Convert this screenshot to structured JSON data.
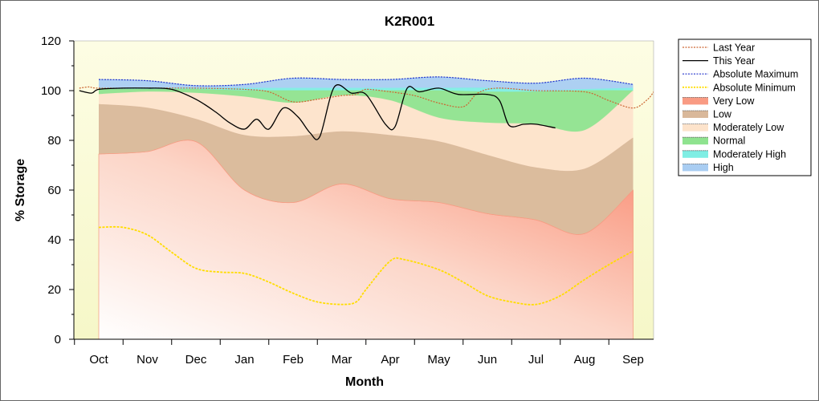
{
  "chart_data": {
    "type": "area",
    "title": "K2R001",
    "xlabel": "Month",
    "ylabel": "% Storage",
    "ylim": [
      0,
      120
    ],
    "y_ticks": [
      "0",
      "20",
      "40",
      "60",
      "80",
      "100",
      "120"
    ],
    "categories": [
      "Oct",
      "Nov",
      "Dec",
      "Jan",
      "Feb",
      "Mar",
      "Apr",
      "May",
      "Jun",
      "Jul",
      "Aug",
      "Sep"
    ],
    "legend_position": "right",
    "bands": [
      {
        "name": "Very Low",
        "color": "#f99b83",
        "lower": [
          0,
          0,
          0,
          0,
          0,
          0,
          0,
          0,
          0,
          0,
          0,
          0
        ],
        "upper": [
          74.5,
          75.5,
          79.5,
          60,
          55,
          62.5,
          56.5,
          55,
          50.5,
          48,
          42.5,
          60
        ]
      },
      {
        "name": "Low",
        "color": "#d9b89a",
        "lower": [
          74.5,
          75.5,
          79.5,
          60,
          55,
          62.5,
          56.5,
          55,
          50.5,
          48,
          42.5,
          60
        ],
        "upper": [
          94.5,
          93,
          88.5,
          82,
          81.5,
          83.5,
          82,
          79.5,
          74,
          69,
          68.5,
          81
        ]
      },
      {
        "name": "Moderately Low",
        "color": "#fde3cb",
        "lower": [
          94.5,
          93,
          88.5,
          82,
          81.5,
          83.5,
          82,
          79.5,
          74,
          69,
          68.5,
          81
        ],
        "upper": [
          98.5,
          99.5,
          99,
          97.5,
          95,
          98,
          96,
          89,
          87,
          86.5,
          84,
          100
        ]
      },
      {
        "name": "Normal",
        "color": "#8fe38f",
        "lower": [
          98.5,
          99.5,
          99,
          97.5,
          95,
          98,
          96,
          89,
          87,
          86.5,
          84,
          100
        ],
        "upper": [
          100.5,
          100.5,
          100.5,
          100,
          100,
          100,
          100,
          100,
          99.5,
          99.5,
          100,
          100
        ]
      },
      {
        "name": "Moderately High",
        "color": "#7feee4",
        "lower": [
          100.5,
          100.5,
          100.5,
          100,
          100,
          100,
          100,
          100,
          99.5,
          99.5,
          100,
          100
        ],
        "upper": [
          101,
          101,
          101,
          101,
          101,
          101,
          101,
          101,
          101,
          100,
          100.5,
          101
        ]
      },
      {
        "name": "High",
        "color": "#a9cdf2",
        "lower": [
          101,
          101,
          101,
          101,
          101,
          101,
          101,
          101,
          101,
          100,
          100.5,
          101
        ],
        "upper": [
          104.5,
          104,
          102,
          102.5,
          105,
          104.5,
          104.5,
          105.5,
          104,
          103,
          105,
          102.5
        ]
      }
    ],
    "lines": [
      {
        "name": "Last Year",
        "color": "#cc6633",
        "style": "dotted",
        "points": [
          [
            -0.4,
            101
          ],
          [
            -0.2,
            101.5
          ],
          [
            0,
            101
          ],
          [
            1,
            101
          ],
          [
            2,
            101
          ],
          [
            3,
            100.5
          ],
          [
            3.5,
            99.5
          ],
          [
            4,
            95.5
          ],
          [
            4.5,
            96.5
          ],
          [
            5,
            98
          ],
          [
            5.3,
            98.5
          ],
          [
            5.5,
            100.5
          ],
          [
            6,
            99.5
          ],
          [
            6.5,
            98
          ],
          [
            7,
            95
          ],
          [
            7.5,
            93.5
          ],
          [
            7.8,
            99
          ],
          [
            8.2,
            101
          ],
          [
            9,
            100
          ],
          [
            10,
            99.5
          ],
          [
            10.5,
            96
          ],
          [
            11,
            93
          ],
          [
            11.3,
            96.5
          ],
          [
            11.5,
            101
          ],
          [
            11.7,
            100
          ]
        ]
      },
      {
        "name": "This Year",
        "color": "#000000",
        "style": "solid",
        "points": [
          [
            -0.4,
            100
          ],
          [
            -0.15,
            99
          ],
          [
            0,
            100.5
          ],
          [
            0.5,
            101
          ],
          [
            1,
            101
          ],
          [
            1.5,
            100.5
          ],
          [
            2,
            96.5
          ],
          [
            2.4,
            91.5
          ],
          [
            2.7,
            87
          ],
          [
            3,
            84.5
          ],
          [
            3.25,
            88.5
          ],
          [
            3.5,
            84.5
          ],
          [
            3.8,
            93
          ],
          [
            4.1,
            89.5
          ],
          [
            4.35,
            83
          ],
          [
            4.55,
            81.5
          ],
          [
            4.85,
            101.5
          ],
          [
            5.2,
            99
          ],
          [
            5.5,
            98.5
          ],
          [
            5.9,
            86.5
          ],
          [
            6.1,
            85.5
          ],
          [
            6.35,
            101
          ],
          [
            6.6,
            99.5
          ],
          [
            7,
            101
          ],
          [
            7.4,
            98.5
          ],
          [
            8,
            98.5
          ],
          [
            8.25,
            96
          ],
          [
            8.45,
            86
          ],
          [
            8.75,
            86.5
          ],
          [
            9,
            86.5
          ],
          [
            9.4,
            85
          ]
        ]
      },
      {
        "name": "Absolute Maximum",
        "color": "#2233cc",
        "style": "dotted",
        "points": [
          [
            0,
            104.5
          ],
          [
            1,
            104
          ],
          [
            2,
            102
          ],
          [
            3,
            102.5
          ],
          [
            4,
            105
          ],
          [
            5,
            104.5
          ],
          [
            6,
            104.5
          ],
          [
            7,
            105.5
          ],
          [
            8,
            104
          ],
          [
            9,
            103
          ],
          [
            10,
            105
          ],
          [
            11,
            102.5
          ]
        ]
      },
      {
        "name": "Absolute Minimum",
        "color": "#ffdd00",
        "style": "dotted",
        "points": [
          [
            0,
            45
          ],
          [
            0.5,
            45
          ],
          [
            1,
            42
          ],
          [
            1.5,
            35
          ],
          [
            2,
            28.5
          ],
          [
            2.5,
            27
          ],
          [
            3,
            26.5
          ],
          [
            3.5,
            23
          ],
          [
            4,
            18.5
          ],
          [
            4.5,
            15
          ],
          [
            5,
            14
          ],
          [
            5.3,
            15
          ],
          [
            5.5,
            20
          ],
          [
            6,
            31.5
          ],
          [
            6.3,
            32
          ],
          [
            7,
            28
          ],
          [
            7.5,
            23
          ],
          [
            8,
            17.5
          ],
          [
            8.5,
            15
          ],
          [
            9,
            14
          ],
          [
            9.5,
            17.5
          ],
          [
            10,
            24
          ],
          [
            10.5,
            30
          ],
          [
            11,
            35.5
          ]
        ]
      }
    ],
    "legend": [
      "Last Year",
      "This Year",
      "Absolute Maximum",
      "Absolute Minimum",
      "Very Low",
      "Low",
      "Moderately Low",
      "Normal",
      "Moderately High",
      "High"
    ]
  }
}
